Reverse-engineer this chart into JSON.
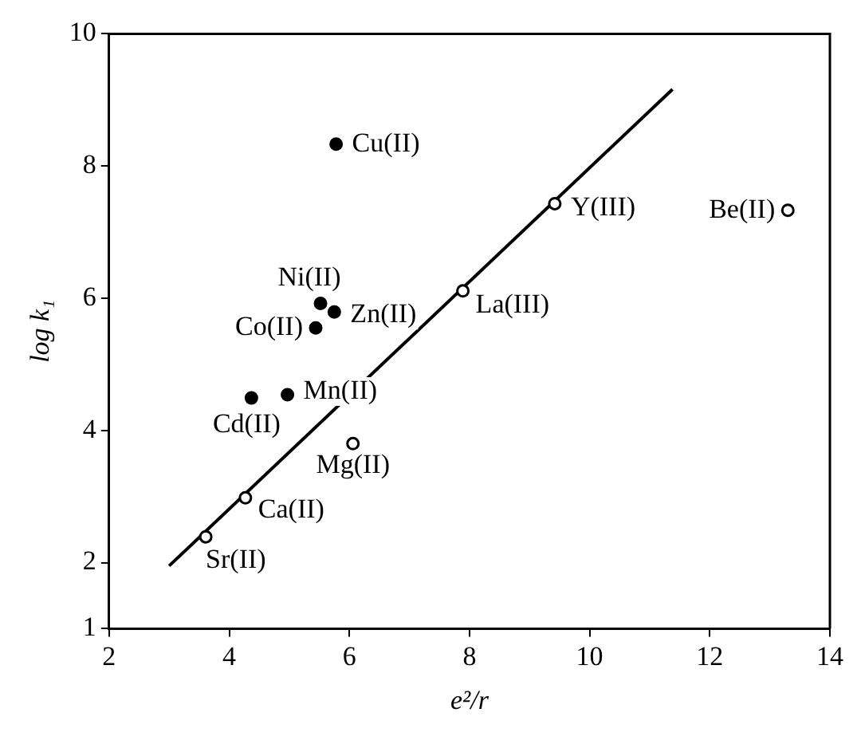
{
  "chart_data": {
    "type": "scatter",
    "xlabel": "e²/r",
    "ylabel": "log k₁",
    "xlim": [
      2,
      14
    ],
    "xticks": [
      2,
      4,
      6,
      8,
      10,
      12,
      14
    ],
    "ylim": [
      1,
      10
    ],
    "yticks": [
      1,
      2,
      4,
      6,
      8,
      10
    ],
    "grid": false,
    "legend": false,
    "marker": "circle",
    "series": [
      {
        "color": "#000000",
        "x": [
          5.78,
          5.52,
          5.75,
          5.44,
          4.97,
          4.37
        ],
        "values": [
          8.33,
          5.92,
          5.79,
          5.55,
          4.54,
          4.49
        ]
      },
      {
        "color": "#ffffff",
        "x": [
          6.06,
          4.27,
          3.61,
          7.89,
          9.42,
          13.3
        ],
        "values": [
          3.8,
          2.98,
          2.39,
          6.11,
          7.43,
          7.33
        ]
      },
      {
        "type": "line",
        "color": "#000000",
        "marker": "none",
        "x": [
          3,
          11.38
        ],
        "values": [
          1.95,
          9.16
        ]
      }
    ],
    "annotations": [
      {
        "text": "Cu(II)",
        "x": 5.78,
        "y": 8.33
      },
      {
        "text": "Ni(II)",
        "x": 5.52,
        "y": 5.92
      },
      {
        "text": "Zn(II)",
        "x": 5.75,
        "y": 5.79
      },
      {
        "text": "Co(II)",
        "x": 5.44,
        "y": 5.55
      },
      {
        "text": "Mn(II)",
        "x": 4.97,
        "y": 4.54
      },
      {
        "text": "Cd(II)",
        "x": 4.37,
        "y": 4.49
      },
      {
        "text": "Mg(II)",
        "x": 6.06,
        "y": 3.8
      },
      {
        "text": "Ca(II)",
        "x": 4.27,
        "y": 2.98
      },
      {
        "text": "Sr(II)",
        "x": 3.61,
        "y": 2.39
      },
      {
        "text": "La(III)",
        "x": 7.89,
        "y": 6.11
      },
      {
        "text": "Y(III)",
        "x": 9.42,
        "y": 7.43
      },
      {
        "text": "Be(II)",
        "x": 13.3,
        "y": 7.33
      }
    ]
  }
}
